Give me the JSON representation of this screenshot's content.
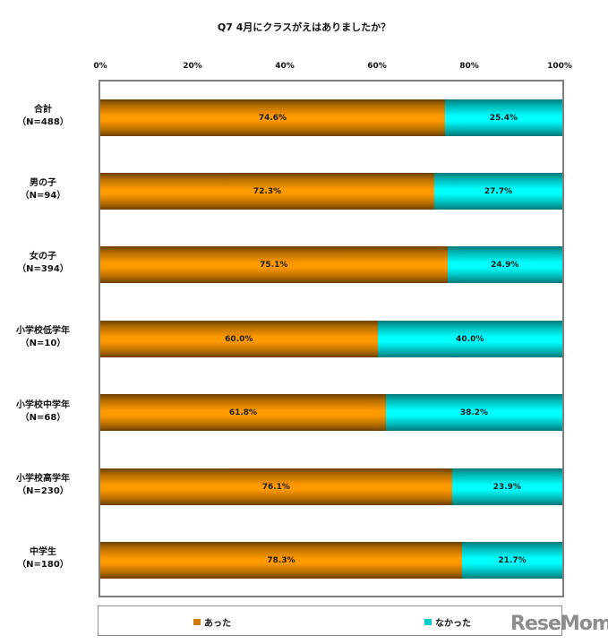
{
  "chart_data": {
    "type": "bar",
    "orientation": "horizontal",
    "stacked": "percent",
    "title": "Q7 4月にクラスがえはありましたか？",
    "xlabel": "",
    "ylabel": "",
    "xlim": [
      0,
      100
    ],
    "x_ticks": [
      "0%",
      "20%",
      "40%",
      "60%",
      "80%",
      "100%"
    ],
    "categories": [
      {
        "name": "合計",
        "n": "（N=488）"
      },
      {
        "name": "男の子",
        "n": "（N=94）"
      },
      {
        "name": "女の子",
        "n": "（N=394）"
      },
      {
        "name": "小学校低学年",
        "n": "（N=10）"
      },
      {
        "name": "小学校中学年",
        "n": "（N=68）"
      },
      {
        "name": "小学校高学年",
        "n": "（N=230）"
      },
      {
        "name": "中学生",
        "n": "（N=180）"
      }
    ],
    "series": [
      {
        "name": "あった",
        "color": "#FF9900",
        "values": [
          74.6,
          72.3,
          75.1,
          60.0,
          61.8,
          76.1,
          78.3
        ],
        "labels": [
          "74.6%",
          "72.3%",
          "75.1%",
          "60.0%",
          "61.8%",
          "76.1%",
          "78.3%"
        ]
      },
      {
        "name": "なかった",
        "color": "#00FFFF",
        "values": [
          25.4,
          27.7,
          24.9,
          40.0,
          38.2,
          23.9,
          21.7
        ],
        "labels": [
          "25.4%",
          "27.7%",
          "24.9%",
          "40.0%",
          "38.2%",
          "23.9%",
          "21.7%"
        ]
      }
    ],
    "grid": false,
    "legend_position": "bottom"
  },
  "legend": {
    "items": [
      {
        "label": "あった",
        "color": "#CC7A00"
      },
      {
        "label": "なかった",
        "color": "#00CCCC"
      }
    ]
  },
  "watermark": "ReseMom"
}
